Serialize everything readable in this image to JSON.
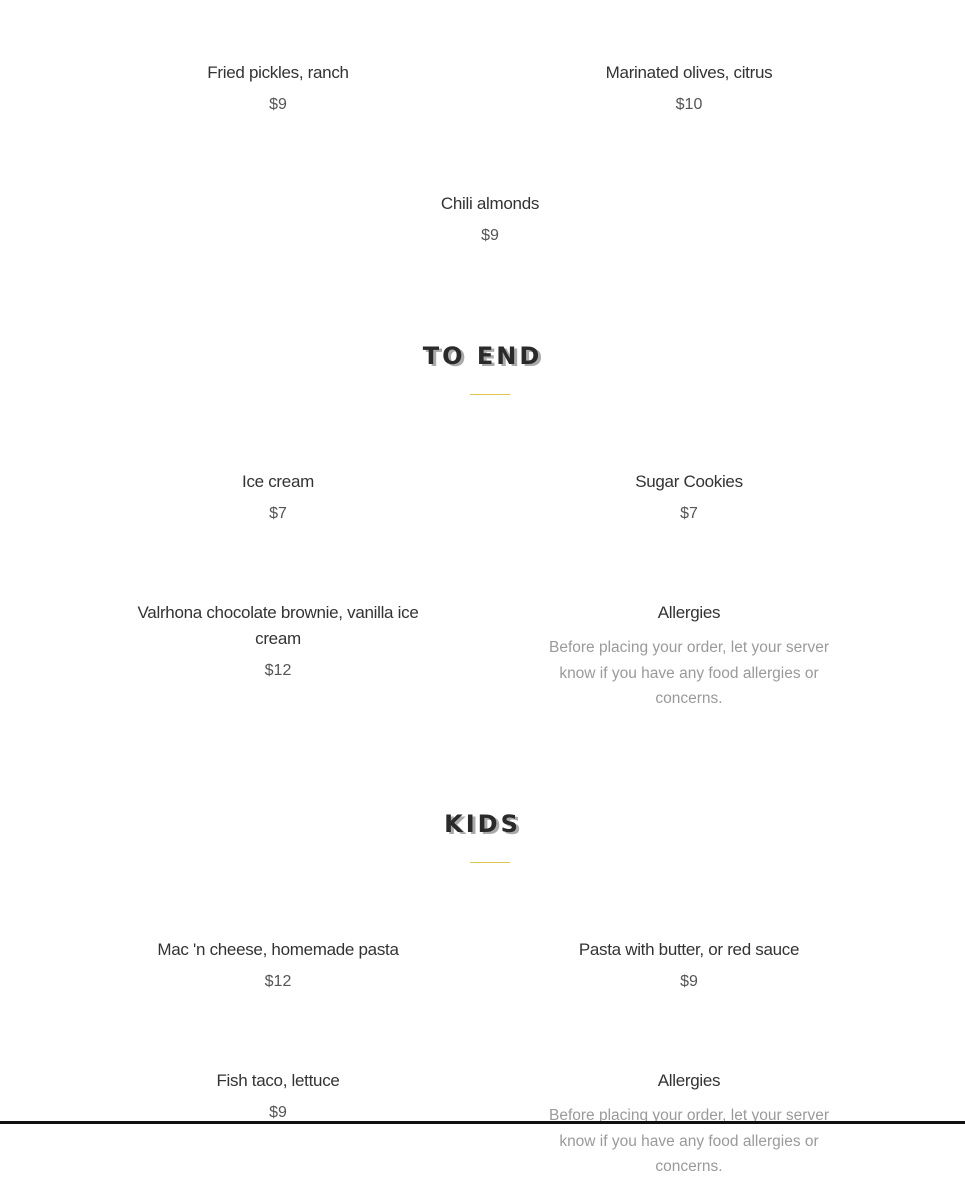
{
  "sections": [
    {
      "items": [
        {
          "name": "Fried pickles, ranch",
          "price": "$9"
        },
        {
          "name": "Marinated olives, citrus",
          "price": "$10"
        },
        {
          "name": "Chili almonds",
          "price": "$9"
        }
      ]
    },
    {
      "title": "TO END",
      "items": [
        {
          "name": "Ice cream",
          "price": "$7"
        },
        {
          "name": "Sugar Cookies",
          "price": "$7"
        },
        {
          "name": "Valrhona chocolate brownie, vanilla ice cream",
          "price": "$12"
        },
        {
          "name": "Allergies",
          "description": "Before placing your order, let your server know if you have any food allergies or concerns."
        }
      ]
    },
    {
      "title": "KIDS",
      "items": [
        {
          "name": "Mac 'n cheese, homemade pasta",
          "price": "$12"
        },
        {
          "name": "Pasta with butter, or red sauce",
          "price": "$9"
        },
        {
          "name": "Fish taco, lettuce",
          "price": "$9"
        },
        {
          "name": "Allergies",
          "description": "Before placing your order, let your server know if you have any food allergies or concerns."
        }
      ]
    }
  ],
  "colors": {
    "accent": "#e3c452",
    "text": "#333333",
    "muted": "#9a9a9a"
  }
}
